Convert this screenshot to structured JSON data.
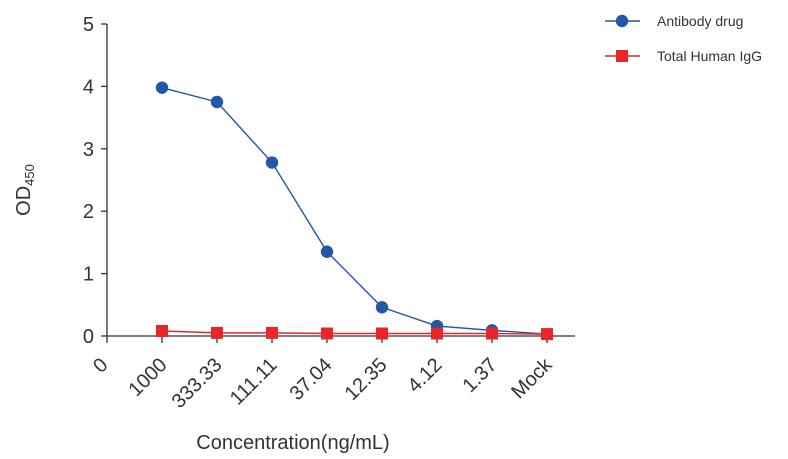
{
  "chart_data": {
    "type": "line",
    "xlabel": "Concentration(ng/mL)",
    "ylabel": "OD",
    "ylabel_subscript": "450",
    "x_origin_label": "0",
    "categories": [
      "1000",
      "333.33",
      "111.11",
      "37.04",
      "12.35",
      "4.12",
      "1.37",
      "Mock"
    ],
    "ylim": [
      0,
      5
    ],
    "yticks": [
      "0",
      "1",
      "2",
      "3",
      "4",
      "5"
    ],
    "grid": false,
    "legend_position": "top-right",
    "series": [
      {
        "name": "Antibody drug",
        "marker": "circle",
        "color": "#2457A8",
        "values": [
          3.98,
          3.75,
          2.78,
          1.35,
          0.46,
          0.16,
          0.09,
          0.03
        ]
      },
      {
        "name": "Total Human IgG",
        "marker": "square",
        "color": "#E8262A",
        "values": [
          0.08,
          0.05,
          0.05,
          0.04,
          0.04,
          0.04,
          0.04,
          0.03
        ]
      }
    ]
  }
}
